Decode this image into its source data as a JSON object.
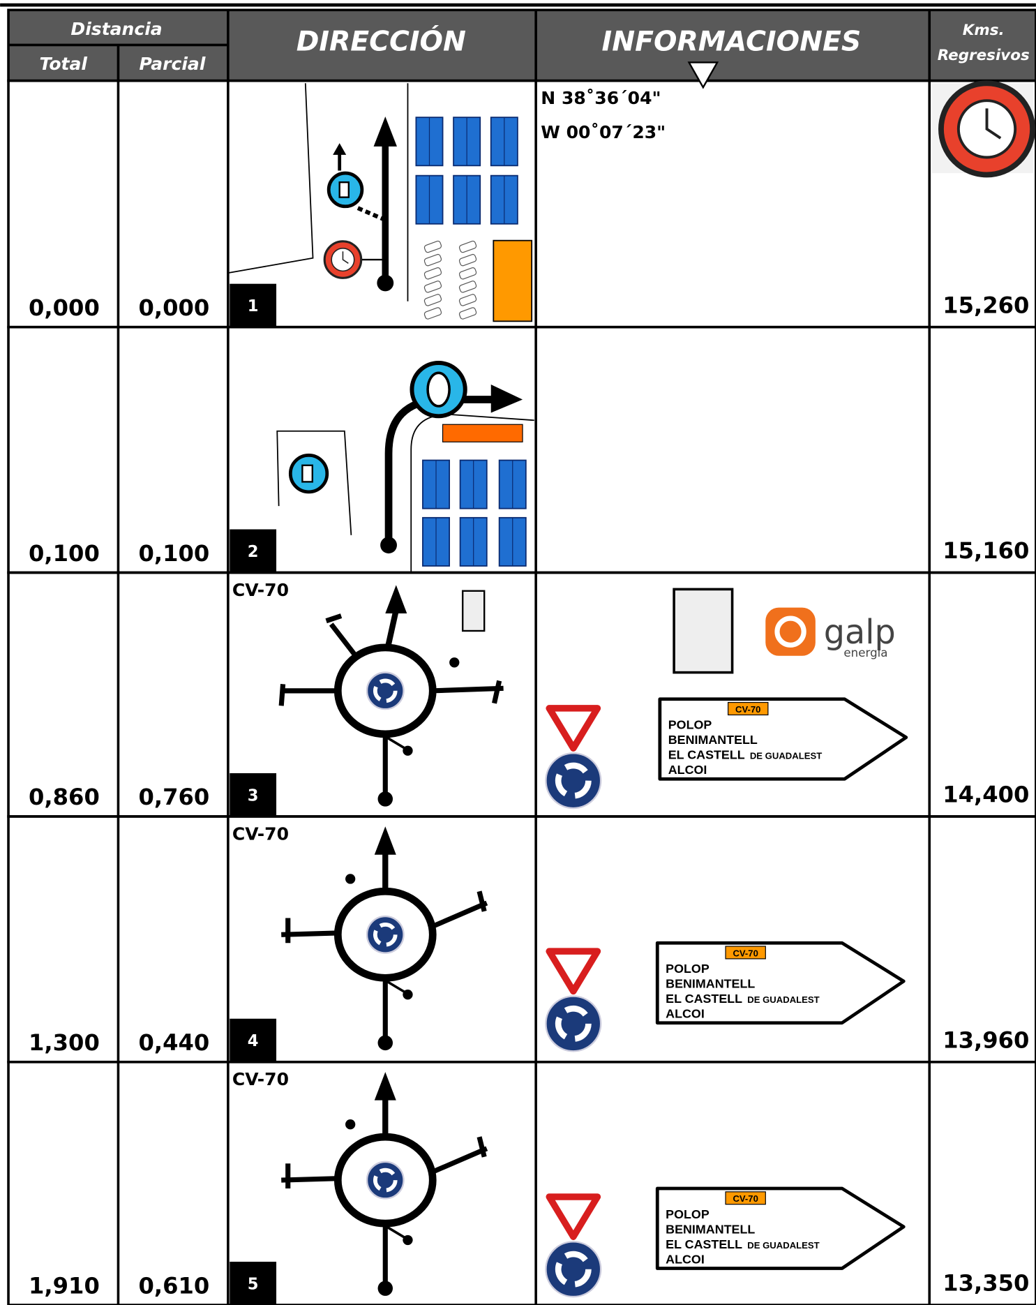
{
  "header": {
    "distancia": "Distancia",
    "total": "Total",
    "parcial": "Parcial",
    "direccion": "DIRECCIÓN",
    "informaciones": "INFORMACIONES",
    "kms": "Kms.",
    "regresivos": "Regresivos"
  },
  "rows": [
    {
      "total": "0,000",
      "parcial": "0,000",
      "number": "1",
      "coordinates": [
        "N 38˚36´04\"",
        "W 00˚07´23\""
      ],
      "kms": "15,260"
    },
    {
      "total": "0,100",
      "parcial": "0,100",
      "number": "2",
      "kms": "15,160"
    },
    {
      "total": "0,860",
      "parcial": "0,760",
      "number": "3",
      "road": "CV-70",
      "logo": {
        "name": "galp",
        "subtitle": "energia"
      },
      "sign": {
        "road": "CV-70",
        "lines": [
          {
            "text": "POLOP"
          },
          {
            "text": "BENIMANTELL"
          },
          {
            "text": "EL CASTELL",
            "small": "DE GUADALEST"
          },
          {
            "text": "ALCOI"
          }
        ]
      },
      "kms": "14,400"
    },
    {
      "total": "1,300",
      "parcial": "0,440",
      "number": "4",
      "road": "CV-70",
      "sign": {
        "road": "CV-70",
        "lines": [
          {
            "text": "POLOP"
          },
          {
            "text": "BENIMANTELL"
          },
          {
            "text": "EL CASTELL",
            "small": "DE GUADALEST"
          },
          {
            "text": "ALCOI"
          }
        ]
      },
      "kms": "13,960"
    },
    {
      "total": "1,910",
      "parcial": "0,610",
      "number": "5",
      "road": "CV-70",
      "sign": {
        "road": "CV-70",
        "lines": [
          {
            "text": "POLOP"
          },
          {
            "text": "BENIMANTELL"
          },
          {
            "text": "EL CASTELL",
            "small": "DE GUADALEST"
          },
          {
            "text": "ALCOI"
          }
        ]
      },
      "kms": "13,350"
    }
  ]
}
